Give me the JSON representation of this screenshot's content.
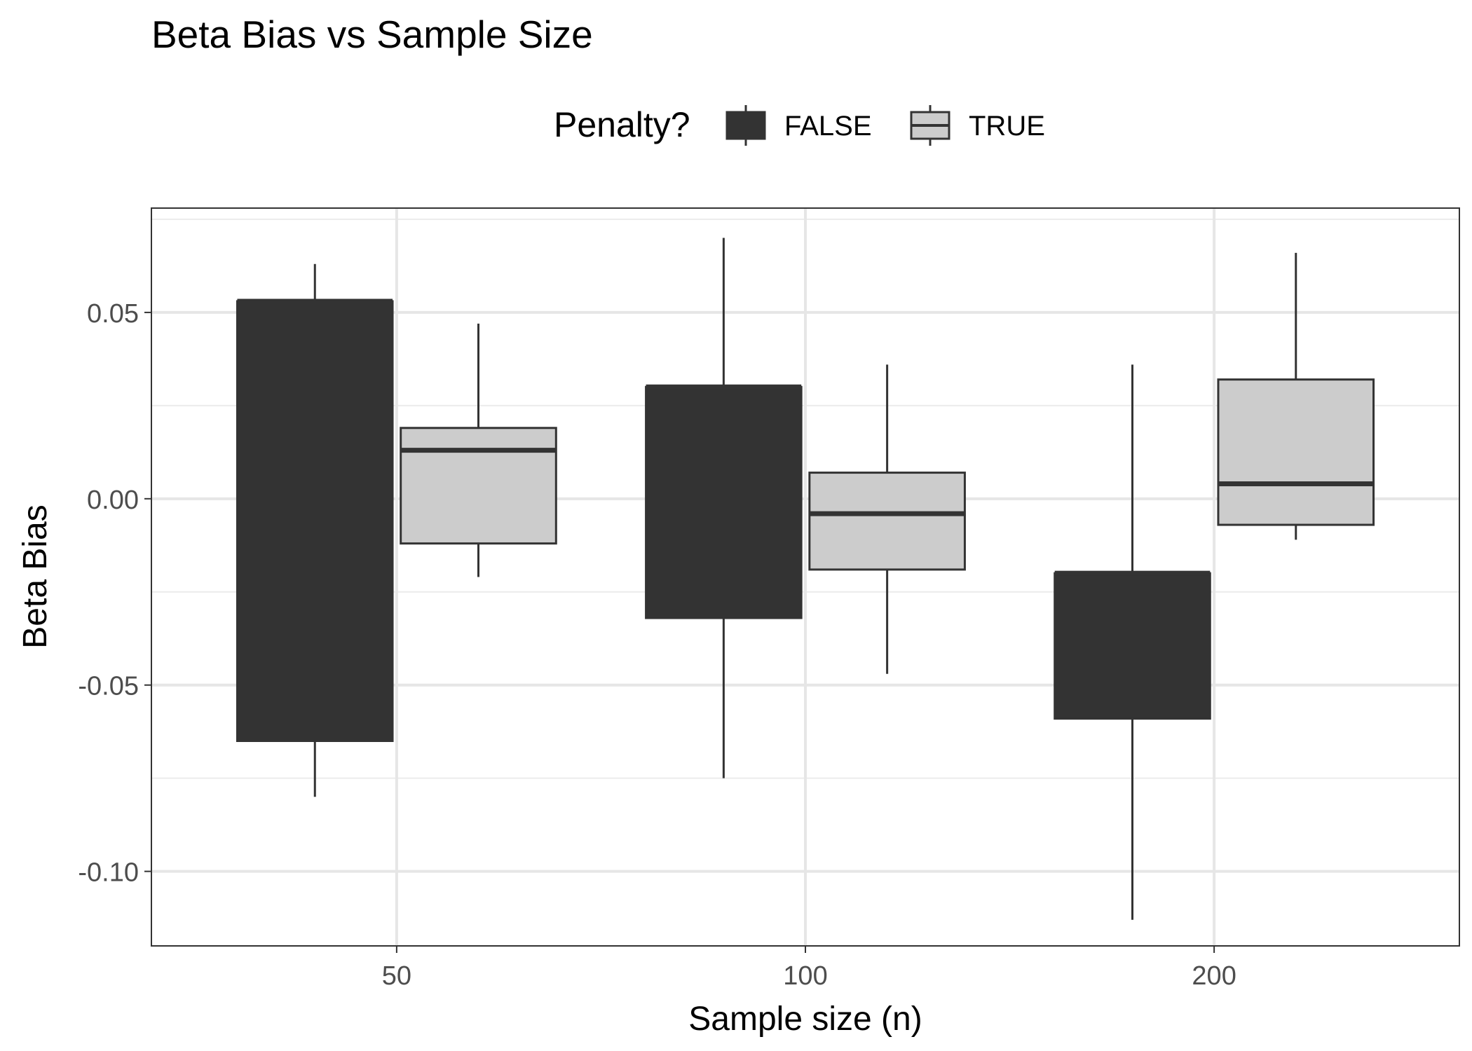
{
  "chart_data": {
    "type": "boxplot",
    "title": "Beta Bias vs Sample Size",
    "xlabel": "Sample size (n)",
    "ylabel": "Beta Bias",
    "categories": [
      "50",
      "100",
      "200"
    ],
    "ylim": [
      -0.12,
      0.078
    ],
    "yticks": [
      -0.1,
      -0.05,
      0.0,
      0.05
    ],
    "ytick_labels": [
      "-0.10",
      "-0.05",
      "0.00",
      "0.05"
    ],
    "grid": true,
    "legend": {
      "title": "Penalty?",
      "placement": "top",
      "entries": [
        "FALSE",
        "TRUE"
      ]
    },
    "series": [
      {
        "name": "FALSE",
        "fill": "#333333",
        "boxes": [
          {
            "category": "50",
            "whisker_low": -0.08,
            "q1": -0.065,
            "median": 0.053,
            "q3": 0.053,
            "whisker_high": 0.063
          },
          {
            "category": "100",
            "whisker_low": -0.075,
            "q1": -0.032,
            "median": 0.03,
            "q3": 0.03,
            "whisker_high": 0.07
          },
          {
            "category": "200",
            "whisker_low": -0.113,
            "q1": -0.059,
            "median": -0.02,
            "q3": -0.02,
            "whisker_high": 0.036
          }
        ]
      },
      {
        "name": "TRUE",
        "fill": "#cccccc",
        "boxes": [
          {
            "category": "50",
            "whisker_low": -0.021,
            "q1": -0.012,
            "median": 0.013,
            "q3": 0.019,
            "whisker_high": 0.047
          },
          {
            "category": "100",
            "whisker_low": -0.047,
            "q1": -0.019,
            "median": -0.004,
            "q3": 0.007,
            "whisker_high": 0.036
          },
          {
            "category": "200",
            "whisker_low": -0.011,
            "q1": -0.007,
            "median": 0.004,
            "q3": 0.032,
            "whisker_high": 0.066
          }
        ]
      }
    ]
  }
}
